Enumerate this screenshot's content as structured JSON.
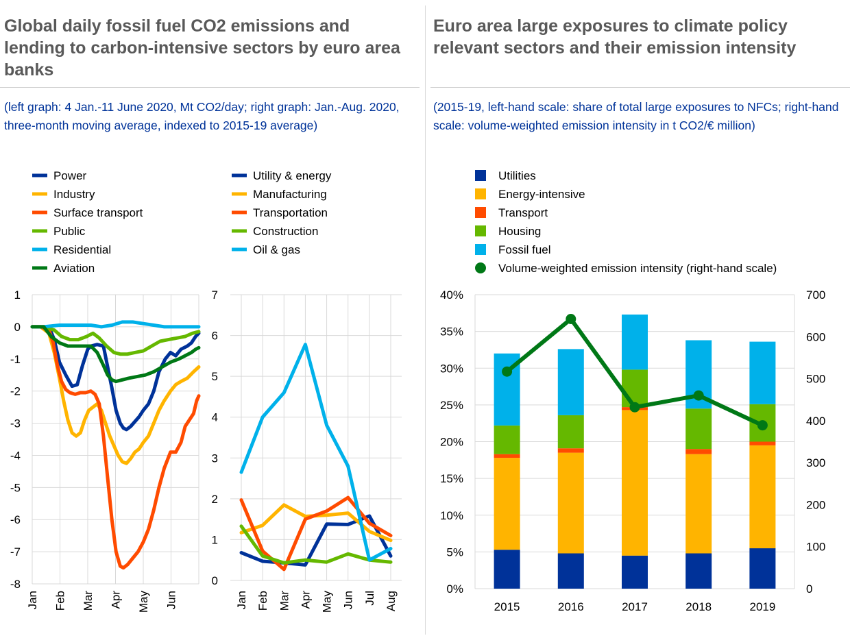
{
  "left": {
    "title": "Global daily fossil fuel CO2 emissions and lending to carbon-intensive sectors by euro area banks",
    "subtitle": "(left graph: 4 Jan.-11 June 2020, Mt CO2/day; right graph: Jan.-Aug. 2020, three-month moving average, indexed to 2015-19 average)"
  },
  "right": {
    "title": "Euro area large exposures to climate policy relevant sectors and their emission intensity",
    "subtitle": "(2015-19, left-hand scale: share of total large exposures to NFCs; right-hand scale: volume-weighted emission intensity in t CO2/€ million)"
  },
  "colors": {
    "dark_blue": "#003299",
    "yellow": "#FFB400",
    "orange": "#FF4B00",
    "light_green": "#65B800",
    "light_blue": "#00B1EA",
    "dark_green": "#007816",
    "grid": "#d9d9d9"
  },
  "chart_data": [
    {
      "type": "line",
      "id": "emissions",
      "x_tick_labels": [
        "Jan",
        "Feb",
        "Mar",
        "Apr",
        "May",
        "Jun"
      ],
      "y_tick_labels": [
        "1",
        "0",
        "-1",
        "-2",
        "-3",
        "-4",
        "-5",
        "-6",
        "-7",
        "-8"
      ],
      "ylim": [
        -8,
        1
      ],
      "x_unit": "day of year 2020 (Jan 1 = 1)",
      "xlim": [
        4,
        163
      ],
      "series": [
        {
          "name": "Power",
          "color": "#003299",
          "x": [
            4,
            12,
            20,
            25,
            30,
            36,
            42,
            47,
            52,
            57,
            60,
            66,
            72,
            80,
            84,
            88,
            91,
            94,
            98,
            102,
            106,
            110,
            115,
            120,
            125,
            131,
            136,
            141,
            146,
            152,
            156,
            160,
            163
          ],
          "y": [
            0,
            0,
            0,
            -0.4,
            -1.1,
            -1.5,
            -1.85,
            -1.8,
            -1.2,
            -0.7,
            -0.6,
            -0.55,
            -0.6,
            -1.9,
            -2.6,
            -3.0,
            -3.15,
            -3.2,
            -3.1,
            -2.95,
            -2.8,
            -2.6,
            -2.4,
            -2.0,
            -1.4,
            -1.0,
            -0.8,
            -0.9,
            -0.7,
            -0.6,
            -0.5,
            -0.3,
            -0.2
          ]
        },
        {
          "name": "Industry",
          "color": "#FFB400",
          "x": [
            4,
            12,
            20,
            25,
            30,
            34,
            38,
            42,
            46,
            50,
            54,
            58,
            62,
            66,
            70,
            74,
            78,
            82,
            86,
            90,
            94,
            98,
            102,
            106,
            110,
            115,
            120,
            125,
            130,
            136,
            141,
            146,
            152,
            158,
            163
          ],
          "y": [
            0,
            0,
            -0.2,
            -0.8,
            -1.6,
            -2.3,
            -2.9,
            -3.3,
            -3.4,
            -3.3,
            -2.9,
            -2.6,
            -2.5,
            -2.4,
            -2.6,
            -3.0,
            -3.4,
            -3.7,
            -4.0,
            -4.2,
            -4.25,
            -4.1,
            -3.9,
            -3.8,
            -3.6,
            -3.4,
            -3.0,
            -2.6,
            -2.3,
            -2.0,
            -1.8,
            -1.7,
            -1.6,
            -1.4,
            -1.25
          ]
        },
        {
          "name": "Surface transport",
          "color": "#FF4B00",
          "x": [
            4,
            12,
            20,
            24,
            28,
            32,
            36,
            40,
            45,
            50,
            55,
            60,
            64,
            68,
            72,
            76,
            80,
            84,
            88,
            91,
            95,
            100,
            105,
            110,
            115,
            120,
            125,
            130,
            136,
            141,
            146,
            150,
            154,
            158,
            161,
            163
          ],
          "y": [
            0,
            0,
            -0.1,
            -0.5,
            -1.2,
            -1.7,
            -1.95,
            -2.05,
            -2.1,
            -2.05,
            -2.05,
            -2.0,
            -2.1,
            -2.4,
            -3.4,
            -4.7,
            -6.0,
            -7.0,
            -7.45,
            -7.5,
            -7.4,
            -7.2,
            -7.0,
            -6.7,
            -6.3,
            -5.7,
            -5.0,
            -4.4,
            -3.9,
            -3.9,
            -3.6,
            -3.1,
            -2.9,
            -2.7,
            -2.3,
            -2.15
          ]
        },
        {
          "name": "Public",
          "color": "#65B800",
          "x": [
            4,
            15,
            25,
            32,
            40,
            48,
            56,
            62,
            68,
            75,
            82,
            88,
            95,
            102,
            110,
            118,
            126,
            134,
            142,
            150,
            157,
            163
          ],
          "y": [
            0,
            0,
            -0.1,
            -0.3,
            -0.4,
            -0.4,
            -0.3,
            -0.2,
            -0.35,
            -0.6,
            -0.8,
            -0.85,
            -0.85,
            -0.8,
            -0.75,
            -0.6,
            -0.45,
            -0.4,
            -0.35,
            -0.3,
            -0.2,
            -0.15
          ]
        },
        {
          "name": "Residential",
          "color": "#00B1EA",
          "x": [
            4,
            15,
            30,
            45,
            60,
            70,
            80,
            90,
            100,
            110,
            120,
            130,
            140,
            150,
            163
          ],
          "y": [
            0,
            0,
            0.05,
            0.05,
            0.05,
            0,
            0.05,
            0.15,
            0.15,
            0.1,
            0.05,
            0,
            0,
            0,
            0
          ]
        },
        {
          "name": "Aviation",
          "color": "#007816",
          "x": [
            4,
            15,
            22,
            30,
            38,
            46,
            54,
            60,
            66,
            72,
            76,
            80,
            84,
            90,
            96,
            104,
            112,
            120,
            128,
            136,
            144,
            150,
            156,
            160,
            163
          ],
          "y": [
            0,
            0,
            -0.3,
            -0.5,
            -0.6,
            -0.6,
            -0.6,
            -0.6,
            -0.8,
            -1.2,
            -1.5,
            -1.65,
            -1.7,
            -1.65,
            -1.6,
            -1.55,
            -1.5,
            -1.4,
            -1.25,
            -1.1,
            -1.0,
            -0.9,
            -0.8,
            -0.7,
            -0.65
          ]
        }
      ]
    },
    {
      "type": "line",
      "id": "lending",
      "categories": [
        "Jan",
        "Feb",
        "Mar",
        "Apr",
        "May",
        "Jun",
        "Jul",
        "Aug"
      ],
      "y_tick_labels": [
        "7",
        "6",
        "5",
        "4",
        "3",
        "2",
        "1",
        "0"
      ],
      "ylim": [
        0,
        7
      ],
      "series": [
        {
          "name": "Utility & energy",
          "color": "#003299",
          "values": [
            0.68,
            0.47,
            0.43,
            0.38,
            1.38,
            1.37,
            1.58,
            0.6
          ]
        },
        {
          "name": "Manufacturing",
          "color": "#FFB400",
          "values": [
            1.17,
            1.35,
            1.85,
            1.57,
            1.6,
            1.65,
            1.2,
            0.98
          ]
        },
        {
          "name": "Transportation",
          "color": "#FF4B00",
          "values": [
            1.97,
            0.72,
            0.27,
            1.5,
            1.7,
            2.03,
            1.4,
            1.1
          ]
        },
        {
          "name": "Construction",
          "color": "#65B800",
          "values": [
            1.33,
            0.6,
            0.43,
            0.5,
            0.45,
            0.65,
            0.5,
            0.45
          ]
        },
        {
          "name": "Oil & gas",
          "color": "#00B1EA",
          "values": [
            2.65,
            4.0,
            4.6,
            5.78,
            3.8,
            2.8,
            0.5,
            0.78
          ]
        }
      ]
    },
    {
      "type": "bar",
      "id": "exposures",
      "stacked": true,
      "categories": [
        "2015",
        "2016",
        "2017",
        "2018",
        "2019"
      ],
      "y_tick_labels": [
        "40%",
        "35%",
        "30%",
        "25%",
        "20%",
        "15%",
        "10%",
        "5%",
        "0%"
      ],
      "ylim": [
        0,
        0.4
      ],
      "y2_tick_labels": [
        "700",
        "600",
        "500",
        "400",
        "300",
        "200",
        "100",
        "0"
      ],
      "y2lim": [
        0,
        700
      ],
      "series": [
        {
          "name": "Utilities",
          "color": "#003299",
          "values": [
            0.053,
            0.048,
            0.045,
            0.048,
            0.055
          ]
        },
        {
          "name": "Energy-intensive",
          "color": "#FFB400",
          "values": [
            0.125,
            0.137,
            0.198,
            0.135,
            0.14
          ]
        },
        {
          "name": "Transport",
          "color": "#FF4B00",
          "values": [
            0.005,
            0.006,
            0.004,
            0.007,
            0.005
          ]
        },
        {
          "name": "Housing",
          "color": "#65B800",
          "values": [
            0.039,
            0.045,
            0.051,
            0.055,
            0.051
          ]
        },
        {
          "name": "Fossil fuel",
          "color": "#00B1EA",
          "values": [
            0.098,
            0.09,
            0.075,
            0.093,
            0.085
          ]
        }
      ],
      "line_series": {
        "name": "Volume-weighted  emission intensity  (right-hand scale)",
        "color": "#007816",
        "values": [
          517,
          642,
          432,
          460,
          389
        ]
      }
    }
  ]
}
